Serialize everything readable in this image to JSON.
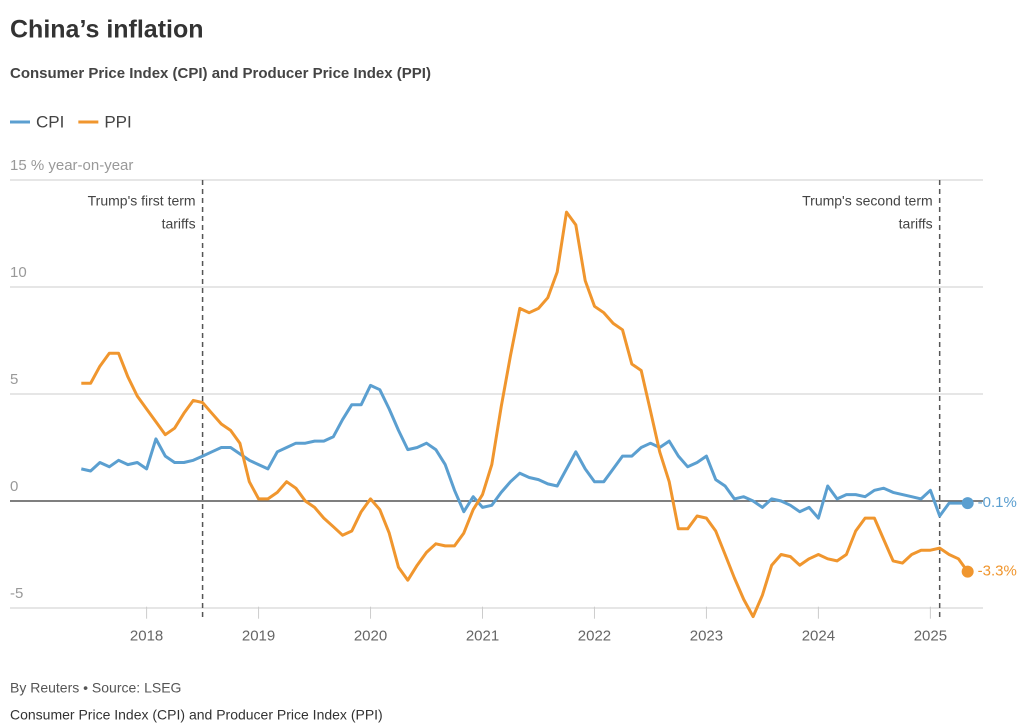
{
  "chart_data": {
    "type": "line",
    "title": "China’s inflation",
    "subtitle": "Consumer Price Index (CPI) and Producer Price Index (PPI)",
    "source": "By Reuters • Source: LSEG",
    "footer_note": "Consumer Price Index (CPI) and Producer Price Index (PPI)",
    "x": [
      2017.417,
      2017.5,
      2017.583,
      2017.667,
      2017.75,
      2017.833,
      2017.917,
      2018,
      2018.083,
      2018.167,
      2018.25,
      2018.333,
      2018.417,
      2018.5,
      2018.583,
      2018.667,
      2018.75,
      2018.833,
      2018.917,
      2019,
      2019.083,
      2019.167,
      2019.25,
      2019.333,
      2019.417,
      2019.5,
      2019.583,
      2019.667,
      2019.75,
      2019.833,
      2019.917,
      2020,
      2020.083,
      2020.167,
      2020.25,
      2020.333,
      2020.417,
      2020.5,
      2020.583,
      2020.667,
      2020.75,
      2020.833,
      2020.917,
      2021,
      2021.083,
      2021.167,
      2021.25,
      2021.333,
      2021.417,
      2021.5,
      2021.583,
      2021.667,
      2021.75,
      2021.833,
      2021.917,
      2022,
      2022.083,
      2022.167,
      2022.25,
      2022.333,
      2022.417,
      2022.5,
      2022.583,
      2022.667,
      2022.75,
      2022.833,
      2022.917,
      2023,
      2023.083,
      2023.167,
      2023.25,
      2023.333,
      2023.417,
      2023.5,
      2023.583,
      2023.667,
      2023.75,
      2023.833,
      2023.917,
      2024,
      2024.083,
      2024.167,
      2024.25,
      2024.333,
      2024.417,
      2024.5,
      2024.583,
      2024.667,
      2024.75,
      2024.833,
      2024.917,
      2025,
      2025.083,
      2025.167,
      2025.25,
      2025.333
    ],
    "series": [
      {
        "name": "CPI",
        "color": "#5b9fd0",
        "end_label": "-0.1%",
        "values": [
          1.5,
          1.4,
          1.8,
          1.6,
          1.9,
          1.7,
          1.8,
          1.5,
          2.9,
          2.1,
          1.8,
          1.8,
          1.9,
          2.1,
          2.3,
          2.5,
          2.5,
          2.2,
          1.9,
          1.7,
          1.5,
          2.3,
          2.5,
          2.7,
          2.7,
          2.8,
          2.8,
          3.0,
          3.8,
          4.5,
          4.5,
          5.4,
          5.2,
          4.3,
          3.3,
          2.4,
          2.5,
          2.7,
          2.4,
          1.7,
          0.5,
          -0.5,
          0.2,
          -0.3,
          -0.2,
          0.4,
          0.9,
          1.3,
          1.1,
          1.0,
          0.8,
          0.7,
          1.5,
          2.3,
          1.5,
          0.9,
          0.9,
          1.5,
          2.1,
          2.1,
          2.5,
          2.7,
          2.5,
          2.8,
          2.1,
          1.6,
          1.8,
          2.1,
          1.0,
          0.7,
          0.1,
          0.2,
          0.0,
          -0.3,
          0.1,
          0.0,
          -0.2,
          -0.5,
          -0.3,
          -0.8,
          0.7,
          0.1,
          0.3,
          0.3,
          0.2,
          0.5,
          0.6,
          0.4,
          0.3,
          0.2,
          0.1,
          0.5,
          -0.7,
          -0.1,
          -0.1,
          -0.1
        ]
      },
      {
        "name": "PPI",
        "color": "#f0962e",
        "end_label": "-3.3%",
        "values": [
          5.5,
          5.5,
          6.3,
          6.9,
          6.9,
          5.8,
          4.9,
          4.3,
          3.7,
          3.1,
          3.4,
          4.1,
          4.7,
          4.6,
          4.1,
          3.6,
          3.3,
          2.7,
          0.9,
          0.1,
          0.1,
          0.4,
          0.9,
          0.6,
          0.0,
          -0.3,
          -0.8,
          -1.2,
          -1.6,
          -1.4,
          -0.5,
          0.1,
          -0.4,
          -1.5,
          -3.1,
          -3.7,
          -3.0,
          -2.4,
          -2.0,
          -2.1,
          -2.1,
          -1.5,
          -0.4,
          0.3,
          1.7,
          4.4,
          6.8,
          9.0,
          8.8,
          9.0,
          9.5,
          10.7,
          13.5,
          12.9,
          10.3,
          9.1,
          8.8,
          8.3,
          8.0,
          6.4,
          6.1,
          4.2,
          2.3,
          0.9,
          -1.3,
          -1.3,
          -0.7,
          -0.8,
          -1.4,
          -2.5,
          -3.6,
          -4.6,
          -5.4,
          -4.4,
          -3.0,
          -2.5,
          -2.6,
          -3.0,
          -2.7,
          -2.5,
          -2.7,
          -2.8,
          -2.5,
          -1.4,
          -0.8,
          -0.8,
          -1.8,
          -2.8,
          -2.9,
          -2.5,
          -2.3,
          -2.3,
          -2.2,
          -2.5,
          -2.7,
          -3.3
        ]
      }
    ],
    "xlim": [
      2016.78,
      2025.47
    ],
    "xticks": [
      2018,
      2019,
      2020,
      2021,
      2022,
      2023,
      2024,
      2025
    ],
    "ylim": [
      -5.5,
      15
    ],
    "yticks": [
      -5,
      0,
      5,
      10,
      {
        "value": 15,
        "label": "15 % year-on-year"
      }
    ],
    "grid": true,
    "annotations": [
      {
        "x": 2018.5,
        "lines": [
          "Trump's first term",
          "tariffs"
        ]
      },
      {
        "x": 2025.083,
        "lines": [
          "Trump's second term",
          "tariffs"
        ]
      }
    ]
  }
}
